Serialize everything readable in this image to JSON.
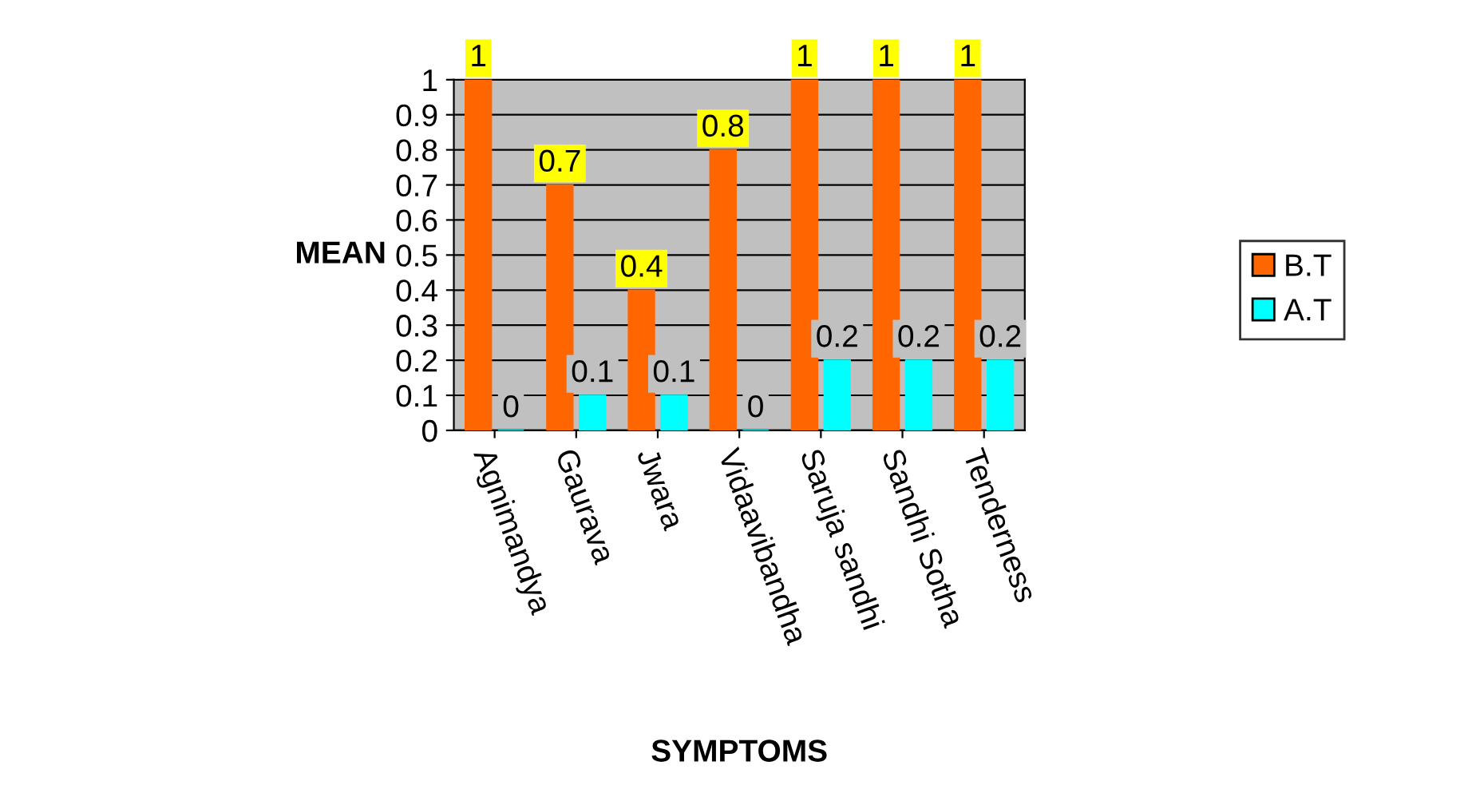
{
  "chart_data": {
    "type": "bar",
    "xlabel": "SYMPTOMS",
    "ylabel": "MEAN",
    "categories": [
      "Agnimandya",
      "Gaurava",
      "Jwara",
      "Vidaavibandha",
      "Saruja sandhi",
      "Sandhi Sotha",
      "Tenderness"
    ],
    "series": [
      {
        "name": "B.T",
        "color": "#ff6600",
        "values": [
          1,
          0.7,
          0.4,
          0.8,
          1,
          1,
          1
        ]
      },
      {
        "name": "A.T",
        "color": "#00ffff",
        "values": [
          0,
          0.1,
          0.1,
          0,
          0.2,
          0.2,
          0.2
        ]
      }
    ],
    "ylim": [
      0,
      1
    ],
    "yticks": [
      0,
      0.1,
      0.2,
      0.3,
      0.4,
      0.5,
      0.6,
      0.7,
      0.8,
      0.9,
      1
    ],
    "grid": "y",
    "legend": "right",
    "data_labels": true
  }
}
